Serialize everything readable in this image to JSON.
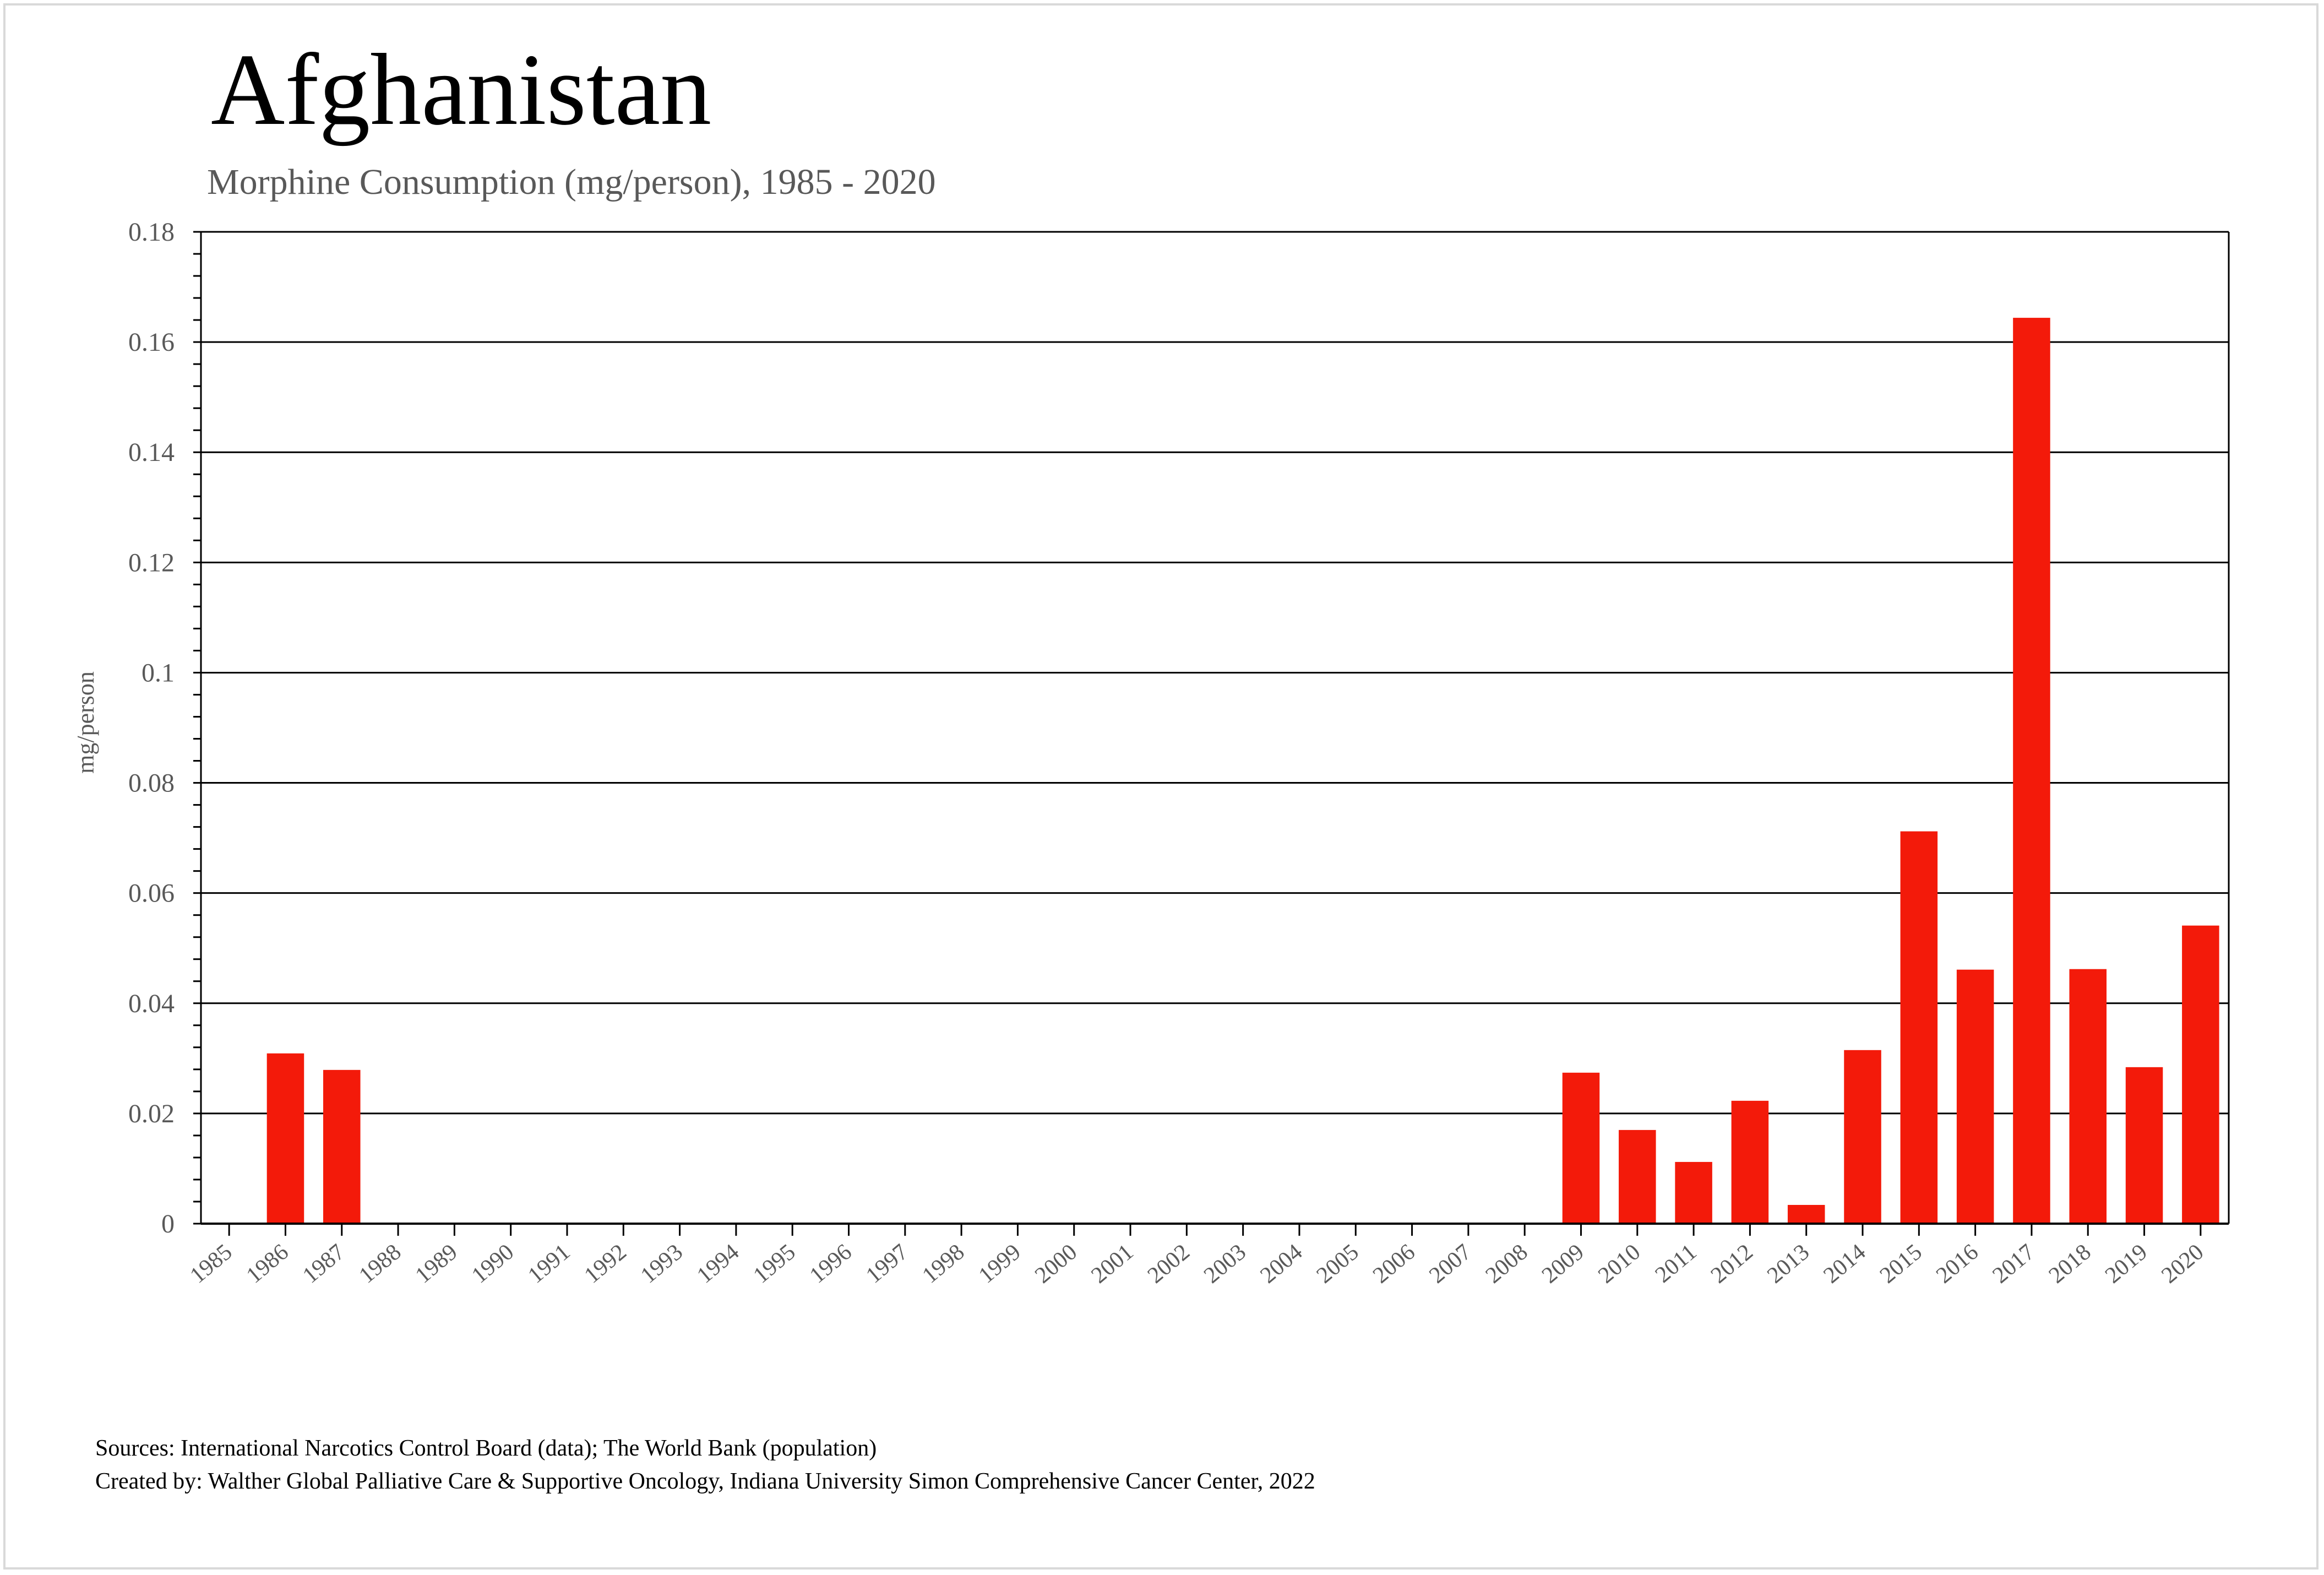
{
  "title": "Afghanistan",
  "subtitle": "Morphine Consumption (mg/person), 1985 - 2020",
  "sources_line1": "Sources: International Narcotics Control Board (data); The World Bank (population)",
  "sources_line2": "Created by: Walther  Global Palliative Care & Supportive Oncology, Indiana University Simon Comprehensive Cancer Center, 2022",
  "colors": {
    "bar": "#f31a0a",
    "grid": "#000000",
    "tick_text": "#595959"
  },
  "chart_data": {
    "type": "bar",
    "title": "Afghanistan",
    "subtitle": "Morphine Consumption (mg/person), 1985 - 2020",
    "xlabel": "",
    "ylabel": "mg/person",
    "ylim": [
      0,
      0.18
    ],
    "yticks": [
      0,
      0.02,
      0.04,
      0.06,
      0.08,
      0.1,
      0.12,
      0.14,
      0.16,
      0.18
    ],
    "ytick_labels": [
      "0",
      "0.02",
      "0.04",
      "0.06",
      "0.08",
      "0.1",
      "0.12",
      "0.14",
      "0.16",
      "0.18"
    ],
    "grid": true,
    "categories": [
      "1985",
      "1986",
      "1987",
      "1988",
      "1989",
      "1990",
      "1991",
      "1992",
      "1993",
      "1994",
      "1995",
      "1996",
      "1997",
      "1998",
      "1999",
      "2000",
      "2001",
      "2002",
      "2003",
      "2004",
      "2005",
      "2006",
      "2007",
      "2008",
      "2009",
      "2010",
      "2011",
      "2012",
      "2013",
      "2014",
      "2015",
      "2016",
      "2017",
      "2018",
      "2019",
      "2020"
    ],
    "values": [
      0,
      0.0309,
      0.0279,
      0,
      0,
      0,
      0,
      0,
      0,
      0,
      0,
      0,
      0,
      0,
      0,
      0,
      0,
      0,
      0,
      0,
      0,
      0,
      0,
      0,
      0.0274,
      0.017,
      0.0112,
      0.0223,
      0.0034,
      0.0315,
      0.0712,
      0.0461,
      0.1644,
      0.0462,
      0.0284,
      0.0541
    ]
  }
}
